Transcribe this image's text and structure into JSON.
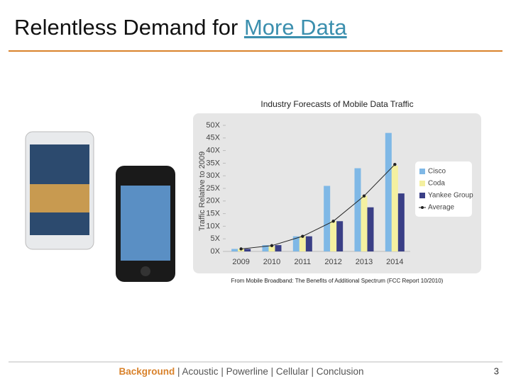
{
  "slide": {
    "title": "Relentless Demand for ",
    "title_link": "More Data",
    "nav": [
      "Background",
      "Acoustic",
      "Powerline",
      "Cellular",
      "Conclusion"
    ],
    "separator": "|",
    "page": "3"
  },
  "chart_data": {
    "type": "bar",
    "title": "Industry Forecasts of Mobile Data Traffic",
    "source": "From Mobile Broadband: The Benefits of Additional Spectrum (FCC Report 10/2010)",
    "ylabel": "Traffic Relative to 2009",
    "categories": [
      "2009",
      "2010",
      "2011",
      "2012",
      "2013",
      "2014"
    ],
    "series": [
      {
        "name": "Cisco",
        "color": "#7fb8e6",
        "values": [
          1,
          2.5,
          6,
          26,
          33,
          47
        ]
      },
      {
        "name": "Coda",
        "color": "#f4f0a0",
        "values": [
          1,
          2,
          6,
          12,
          22,
          34
        ]
      },
      {
        "name": "Yankee Group",
        "color": "#3a3f86",
        "values": [
          1,
          2.5,
          6,
          12,
          17.5,
          23
        ]
      },
      {
        "name": "Average",
        "color": "#222222",
        "type": "line",
        "values": [
          1,
          2.3,
          6,
          12,
          22,
          34.5
        ]
      }
    ],
    "ylim": [
      0,
      50
    ],
    "yticks": [
      {
        "value": 0,
        "label": "0X"
      },
      {
        "value": 5,
        "label": "5X"
      },
      {
        "value": 10,
        "label": "10X"
      },
      {
        "value": 15,
        "label": "15X"
      },
      {
        "value": 20,
        "label": "20X"
      },
      {
        "value": 25,
        "label": "25X"
      },
      {
        "value": 30,
        "label": "30X"
      },
      {
        "value": 35,
        "label": "35X"
      },
      {
        "value": 40,
        "label": "40X"
      },
      {
        "value": 45,
        "label": "45X"
      },
      {
        "value": 50,
        "label": "50X"
      }
    ],
    "legend": "right"
  }
}
